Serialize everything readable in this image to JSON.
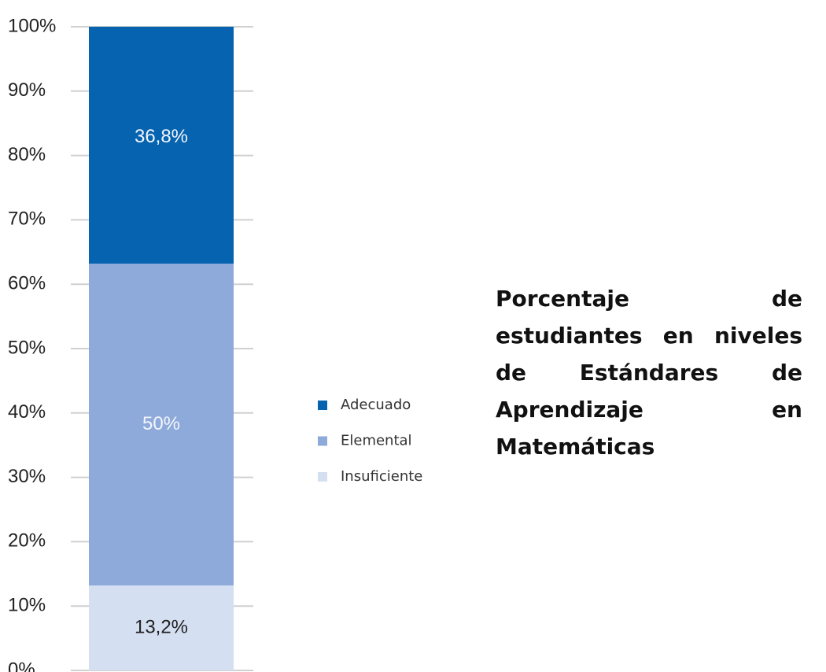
{
  "chart_data": {
    "type": "stacked_bar",
    "title": "Porcentaje de estudiantes en niveles de Estándares de Aprendizaje en Matemáticas",
    "categories": [
      null
    ],
    "series": [
      {
        "name": "Insuficiente",
        "color": "#d5dff2",
        "values": [
          13.2
        ],
        "value_labels": [
          "13,2%"
        ]
      },
      {
        "name": "Elemental",
        "color": "#8eaadb",
        "values": [
          50
        ],
        "value_labels": [
          "50%"
        ]
      },
      {
        "name": "Adecuado",
        "color": "#0563b0",
        "values": [
          36.8
        ],
        "value_labels": [
          "36,8%"
        ]
      }
    ],
    "ylim": [
      0,
      100
    ],
    "yticks": [
      {
        "value": 0,
        "label": "0%"
      },
      {
        "value": 10,
        "label": "10%"
      },
      {
        "value": 20,
        "label": "20%"
      },
      {
        "value": 30,
        "label": "30%"
      },
      {
        "value": 40,
        "label": "40%"
      },
      {
        "value": 50,
        "label": "50%"
      },
      {
        "value": 60,
        "label": "60%"
      },
      {
        "value": 70,
        "label": "70%"
      },
      {
        "value": 80,
        "label": "80%"
      },
      {
        "value": 90,
        "label": "90%"
      },
      {
        "value": 100,
        "label": "100%"
      }
    ],
    "grid": true,
    "legend": "right"
  }
}
